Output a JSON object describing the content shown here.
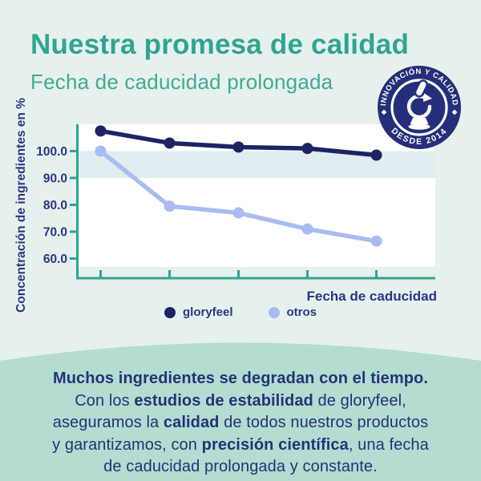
{
  "header": {
    "title": "Nuestra promesa de calidad",
    "subtitle": "Fecha de caducidad prolongada"
  },
  "badge": {
    "top_text": "INNOVACIÓN Y CALIDAD",
    "bottom_text": "DESDE 2014",
    "icon": "microscope-icon",
    "bg_color": "#252e7a",
    "text_color": "#ffffff"
  },
  "chart_data": {
    "type": "line",
    "title": "",
    "xlabel": "Fecha de caducidad",
    "ylabel": "Concentración de ingredientes en %",
    "x_tick_count": 5,
    "x_tick_labels": [
      "",
      "",
      "",
      "",
      ""
    ],
    "yticks": [
      100,
      90,
      80,
      70,
      60
    ],
    "ytick_labels": [
      "100.0",
      "90.0",
      "80.0",
      "70.0",
      "60.0"
    ],
    "ylim": [
      56,
      110
    ],
    "grid": false,
    "plot_bg": "#ffffff",
    "axis_color": "#2fa491",
    "highlight_band": {
      "from": 90,
      "to": 100,
      "color": "#e1edf1"
    },
    "legend_position": "bottom",
    "series": [
      {
        "name": "gloryfeel",
        "color": "#1c2464",
        "values": [
          107.5,
          103,
          101.5,
          101,
          98.5
        ]
      },
      {
        "name": "otros",
        "color": "#a9bcf2",
        "values": [
          100,
          79.5,
          77,
          71,
          66.5
        ]
      }
    ]
  },
  "bottom": {
    "bg": "#b4dcd1",
    "text_color": "#273176",
    "lines": [
      [
        {
          "t": "Muchos ingredientes se degradan con el tiempo.",
          "b": true
        }
      ],
      [
        {
          "t": "Con los ",
          "b": false
        },
        {
          "t": "estudios de estabilidad",
          "b": true
        },
        {
          "t": " de gloryfeel,",
          "b": false
        }
      ],
      [
        {
          "t": "aseguramos la ",
          "b": false
        },
        {
          "t": "calidad",
          "b": true
        },
        {
          "t": " de todos nuestros productos",
          "b": false
        }
      ],
      [
        {
          "t": "y garantizamos, con ",
          "b": false
        },
        {
          "t": "precisión científica",
          "b": true
        },
        {
          "t": ", una fecha",
          "b": false
        }
      ],
      [
        {
          "t": "de caducidad prolongada y constante.",
          "b": false
        }
      ]
    ]
  },
  "colors": {
    "page_bg": "#e6f1ed",
    "panel_bg": "#b4dcd1",
    "title_teal": "#2fa491",
    "subtitle_teal": "#3faa96",
    "chart_text_navy": "#2c3484",
    "body_navy": "#273176",
    "badge_navy": "#252e7a",
    "white": "#ffffff"
  }
}
